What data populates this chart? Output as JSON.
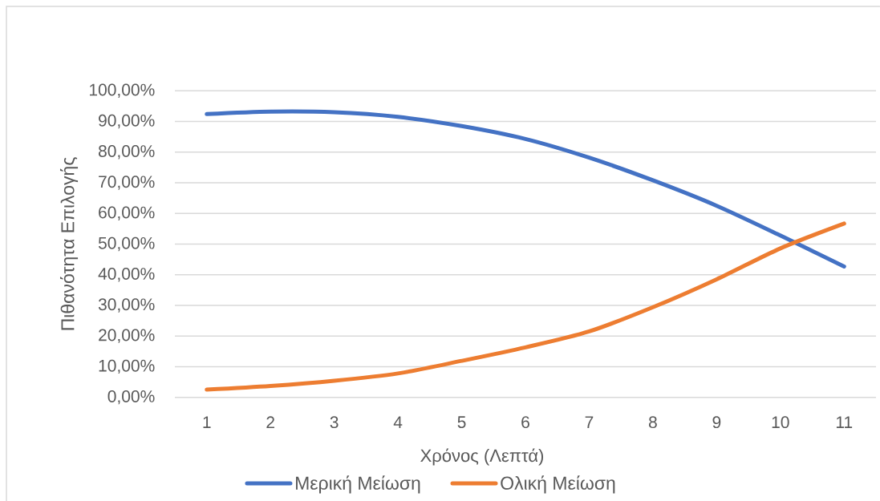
{
  "chart_data": {
    "type": "line",
    "xlabel": "Χρόνος (Λεπτά)",
    "ylabel": "Πιθανότητα Επιλογής",
    "categories": [
      "1",
      "2",
      "3",
      "4",
      "5",
      "6",
      "7",
      "8",
      "9",
      "10",
      "11"
    ],
    "series": [
      {
        "name": "Μερική Μείωση",
        "color": "#4472c4",
        "values": [
          92.4,
          93.2,
          93.0,
          91.5,
          88.5,
          84.3,
          78.2,
          70.8,
          62.5,
          52.8,
          42.7
        ]
      },
      {
        "name": "Ολική Μείωση",
        "color": "#ed7d31",
        "values": [
          2.5,
          3.7,
          5.4,
          7.8,
          11.9,
          16.3,
          21.5,
          29.4,
          38.5,
          48.6,
          56.7
        ]
      }
    ],
    "ylim": [
      0,
      100
    ],
    "yticks": [
      {
        "value": 0,
        "label": "0,00%"
      },
      {
        "value": 10,
        "label": "10,00%"
      },
      {
        "value": 20,
        "label": "20,00%"
      },
      {
        "value": 30,
        "label": "30,00%"
      },
      {
        "value": 40,
        "label": "40,00%"
      },
      {
        "value": 50,
        "label": "50,00%"
      },
      {
        "value": 60,
        "label": "60,00%"
      },
      {
        "value": 70,
        "label": "70,00%"
      },
      {
        "value": 80,
        "label": "80,00%"
      },
      {
        "value": 90,
        "label": "90,00%"
      },
      {
        "value": 100,
        "label": "100,00%"
      }
    ],
    "grid": "y",
    "legend": "bottom",
    "marker": "none",
    "line_style": "solid"
  }
}
